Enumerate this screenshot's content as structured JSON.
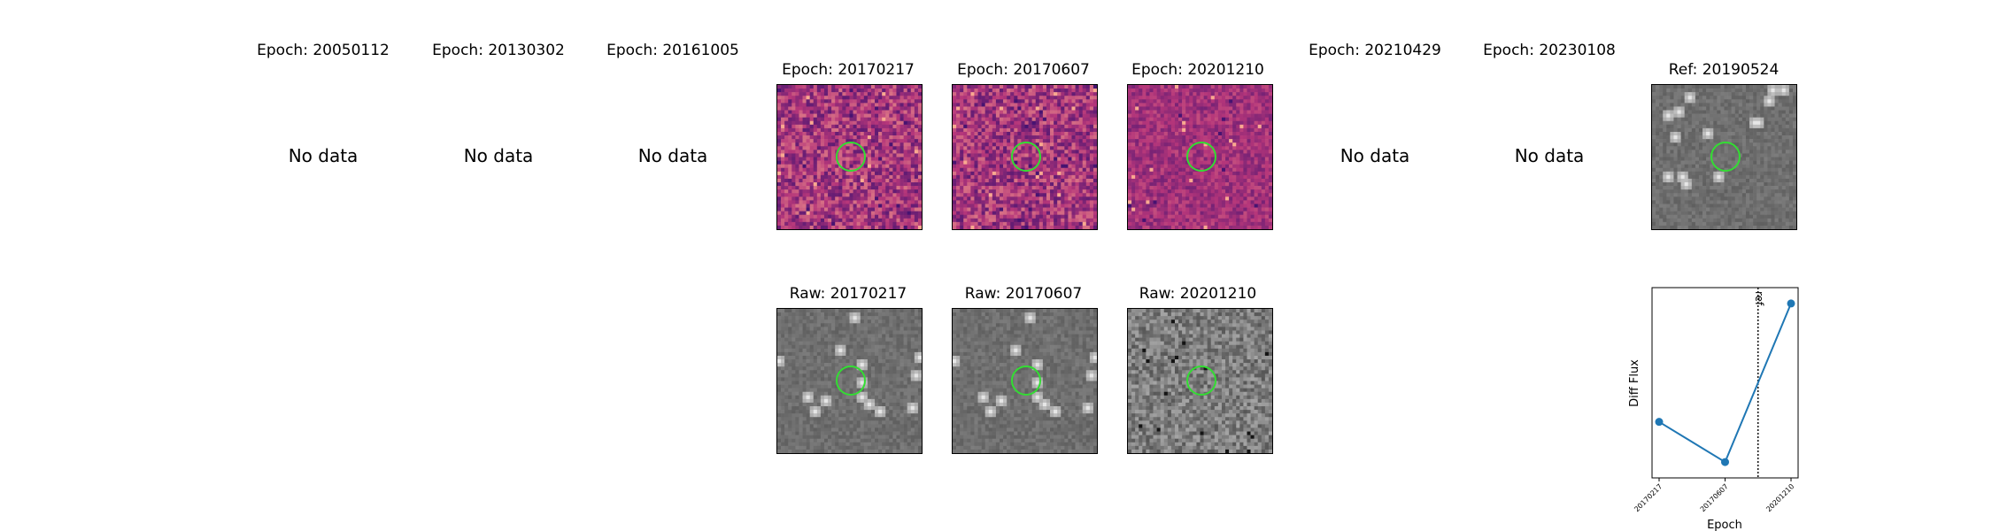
{
  "epochs": [
    {
      "title": "Epoch: 20050112",
      "has_data": false,
      "nodata_label": "No data"
    },
    {
      "title": "Epoch: 20130302",
      "has_data": false,
      "nodata_label": "No data"
    },
    {
      "title": "Epoch: 20161005",
      "has_data": false,
      "nodata_label": "No data"
    },
    {
      "title": "Epoch: 20170217",
      "has_data": true
    },
    {
      "title": "Epoch: 20170607",
      "has_data": true
    },
    {
      "title": "Epoch: 20201210",
      "has_data": true
    },
    {
      "title": "Epoch: 20210429",
      "has_data": false,
      "nodata_label": "No data"
    },
    {
      "title": "Epoch: 20230108",
      "has_data": false,
      "nodata_label": "No data"
    },
    {
      "title": "Ref: 20190524",
      "has_data": true
    }
  ],
  "raw": [
    {
      "title": "Raw: 20170217"
    },
    {
      "title": "Raw: 20170607"
    },
    {
      "title": "Raw: 20201210"
    }
  ],
  "colors": {
    "circle": "#33dd33",
    "line": "#1f77b4",
    "diff_low": "#3b0f70",
    "diff_mid": "#b5367a",
    "diff_high": "#fcae91"
  },
  "chart_data": {
    "type": "line",
    "x": [
      "20170217",
      "20170607",
      "20201210"
    ],
    "y": [
      0.41,
      0.05,
      1.47
    ],
    "ylabel": "Diff Flux",
    "xlabel": "Epoch",
    "ref_marker": {
      "label": "ref",
      "position_between": [
        "20170607",
        "20201210"
      ],
      "fraction": 0.5
    },
    "yticks_visible": false
  }
}
